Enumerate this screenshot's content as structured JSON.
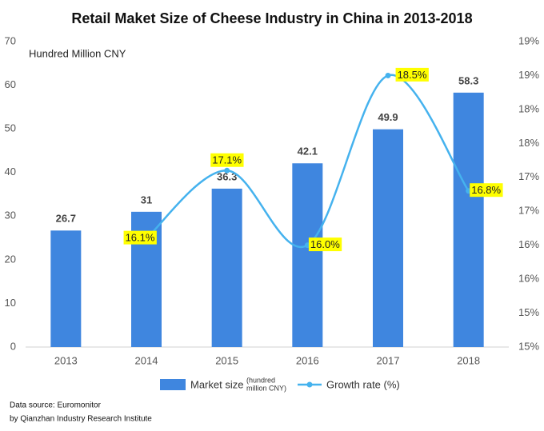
{
  "chart_data": {
    "type": "bar_line",
    "title": "Retail Maket Size of Cheese Industry in China in 2013-2018",
    "y_label": "Hundred Million CNY",
    "source": "Data source: Euromonitor",
    "credit": "by Qianzhan Industry Research Institute",
    "categories": [
      "2013",
      "2014",
      "2015",
      "2016",
      "2017",
      "2018"
    ],
    "series": [
      {
        "name": "Market size",
        "legend_note": [
          "(hundred",
          "million CNY)"
        ],
        "color": "#3f86df",
        "values": [
          26.7,
          31,
          36.3,
          42.1,
          49.9,
          58.3
        ]
      },
      {
        "name": "Growth rate (%)",
        "color": "#45b2ee",
        "axis": "y2",
        "values": [
          null,
          16.1,
          17.1,
          16.0,
          18.5,
          16.8
        ],
        "value_labels": [
          null,
          "16.1%",
          "17.1%",
          "16.0%",
          "18.5%",
          "16.8%"
        ]
      }
    ],
    "ylim": [
      0,
      70
    ],
    "yticks": [
      0,
      10,
      20,
      30,
      40,
      50,
      60,
      70
    ],
    "y2lim": [
      14.5,
      19
    ],
    "y2ticks": [
      {
        "value": 14.5,
        "label": "15%"
      },
      {
        "value": 15,
        "label": "15%"
      },
      {
        "value": 15.5,
        "label": "16%"
      },
      {
        "value": 16,
        "label": "16%"
      },
      {
        "value": 16.5,
        "label": "17%"
      },
      {
        "value": 17,
        "label": "17%"
      },
      {
        "value": 17.5,
        "label": "18%"
      },
      {
        "value": 18,
        "label": "18%"
      },
      {
        "value": 18.5,
        "label": "19%"
      },
      {
        "value": 19,
        "label": "19%"
      }
    ]
  }
}
